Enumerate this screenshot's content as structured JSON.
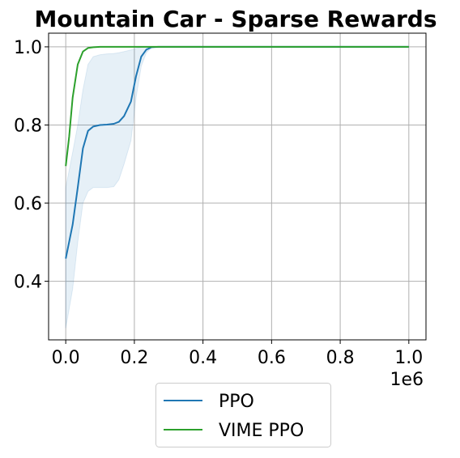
{
  "chart_data": {
    "type": "line",
    "title": "Mountain Car - Sparse Rewards",
    "xlabel": "",
    "ylabel": "",
    "x_offset_label": "1e6",
    "xlim": [
      -0.05,
      1.05
    ],
    "ylim": [
      0.25,
      1.035
    ],
    "xticks": [
      0.0,
      0.2,
      0.4,
      0.6,
      0.8,
      1.0
    ],
    "xtick_labels": [
      "0.0",
      "0.2",
      "0.4",
      "0.6",
      "0.8",
      "1.0"
    ],
    "yticks": [
      0.4,
      0.6,
      0.8,
      1.0
    ],
    "ytick_labels": [
      "0.4",
      "0.6",
      "0.8",
      "1.0"
    ],
    "grid": true,
    "legend_position": "below",
    "series": [
      {
        "name": "PPO",
        "color": "#1f77b4",
        "x": [
          0.0,
          0.02,
          0.035,
          0.05,
          0.065,
          0.08,
          0.1,
          0.12,
          0.14,
          0.155,
          0.17,
          0.19,
          0.205,
          0.22,
          0.235,
          0.25,
          0.27,
          0.3,
          0.4,
          0.5,
          0.6,
          0.7,
          0.8,
          0.9,
          1.0
        ],
        "y": [
          0.458,
          0.545,
          0.64,
          0.74,
          0.785,
          0.796,
          0.8,
          0.801,
          0.803,
          0.808,
          0.823,
          0.86,
          0.925,
          0.975,
          0.993,
          0.999,
          1.0,
          1.0,
          1.0,
          1.0,
          1.0,
          1.0,
          1.0,
          1.0,
          1.0
        ],
        "lower": [
          0.28,
          0.38,
          0.5,
          0.6,
          0.63,
          0.64,
          0.64,
          0.64,
          0.642,
          0.66,
          0.7,
          0.76,
          0.87,
          0.95,
          0.985,
          0.998,
          1.0,
          1.0,
          1.0,
          1.0,
          1.0,
          1.0,
          1.0,
          1.0,
          1.0
        ],
        "upper": [
          0.64,
          0.73,
          0.8,
          0.89,
          0.955,
          0.975,
          0.98,
          0.982,
          0.983,
          0.985,
          0.988,
          0.992,
          0.996,
          0.999,
          1.0,
          1.0,
          1.0,
          1.0,
          1.0,
          1.0,
          1.0,
          1.0,
          1.0,
          1.0,
          1.0
        ]
      },
      {
        "name": "VIME PPO",
        "color": "#2ca02c",
        "x": [
          0.0,
          0.01,
          0.02,
          0.035,
          0.05,
          0.065,
          0.08,
          0.1,
          0.15,
          0.2,
          0.3,
          0.4,
          0.5,
          0.6,
          0.7,
          0.8,
          0.9,
          1.0
        ],
        "y": [
          0.695,
          0.77,
          0.87,
          0.955,
          0.988,
          0.997,
          0.999,
          1.0,
          1.0,
          1.0,
          1.0,
          1.0,
          1.0,
          1.0,
          1.0,
          1.0,
          1.0,
          1.0
        ]
      }
    ]
  }
}
